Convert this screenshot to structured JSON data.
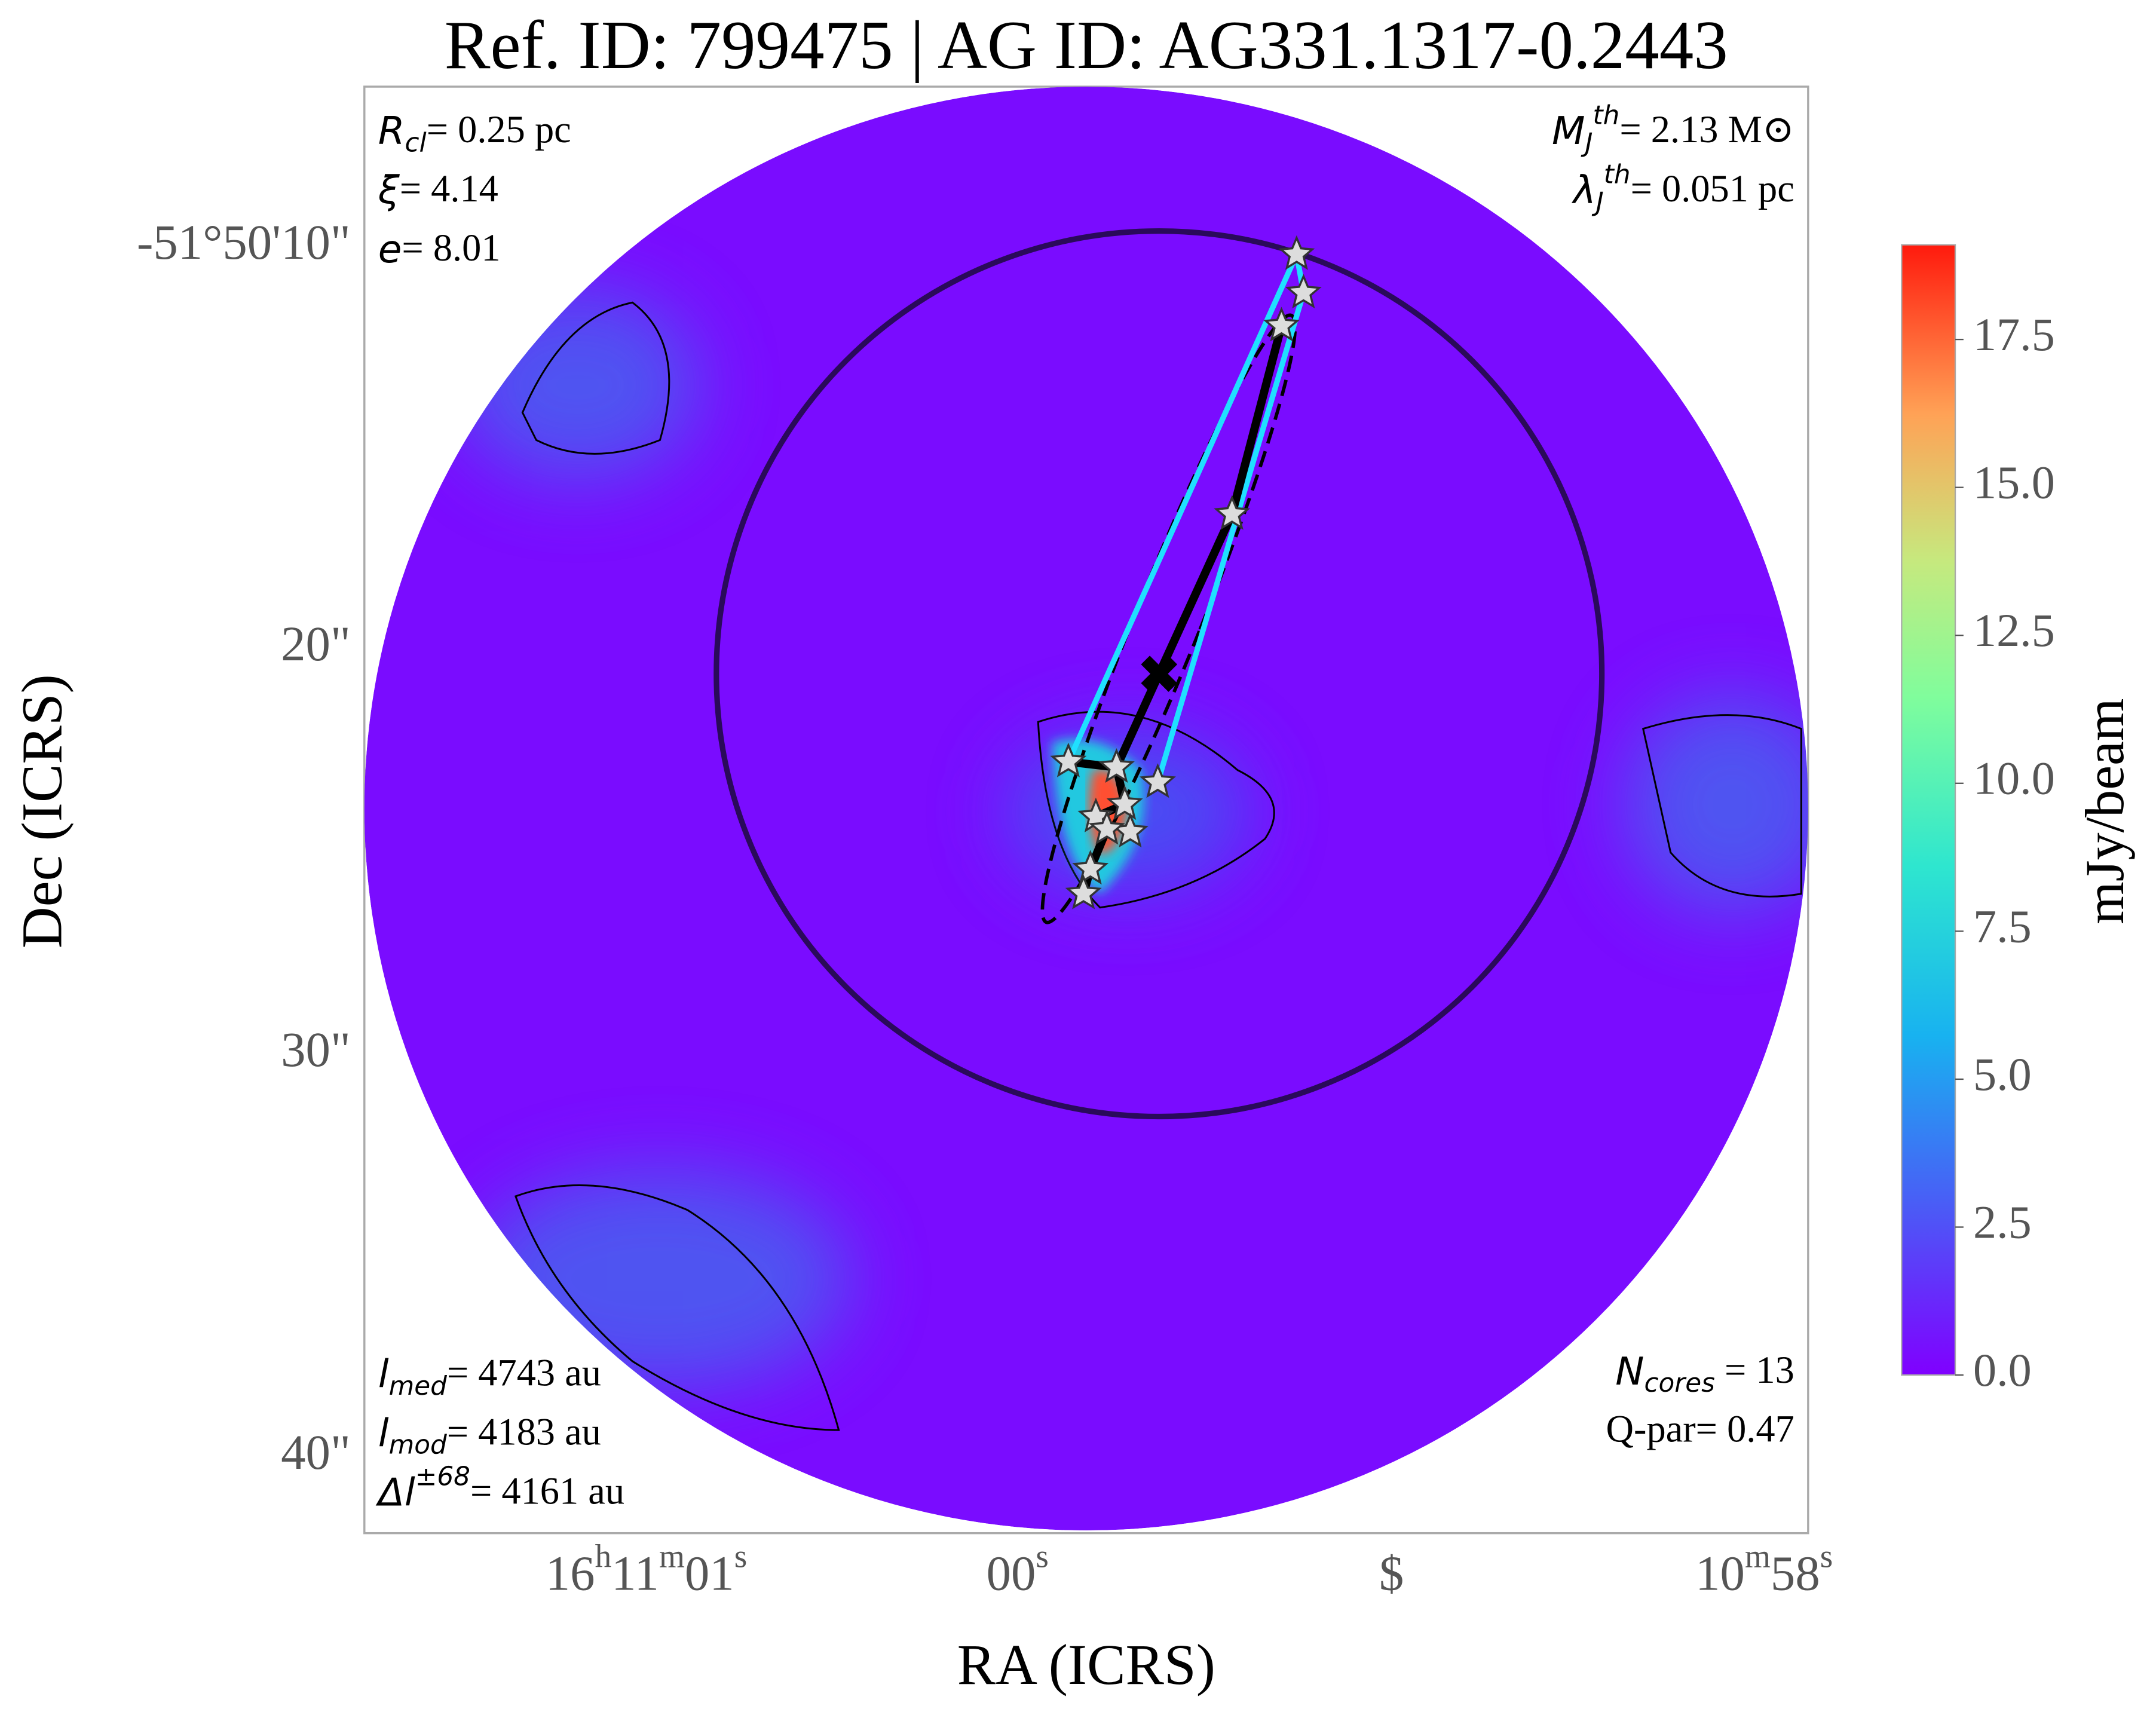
{
  "chart_data": {
    "type": "image",
    "title": "Ref. ID: 799475 | AG ID: AG331.1317-0.2443",
    "x_label": "RA (ICRS)",
    "y_label": "Dec (ICRS)",
    "x_tick_labels": [
      [
        "16",
        "h",
        "11",
        "m",
        "01",
        "s"
      ],
      [
        "00",
        "s"
      ],
      [
        "$"
      ],
      [
        "10",
        "m",
        "58",
        "s"
      ]
    ],
    "y_tick_labels": [
      "-51°50'10\"",
      "20\"",
      "30\"",
      "40\""
    ],
    "colorbar": {
      "label": "mJy/beam",
      "lim": [
        0,
        19.1
      ],
      "ticks": [
        {
          "value": 0,
          "label": "0.0"
        },
        2.5,
        {
          "value": 5,
          "label": "5.0"
        },
        7.5,
        {
          "value": 10,
          "label": "10.0"
        },
        12.5,
        {
          "value": 15,
          "label": "15.0"
        },
        17.5
      ]
    },
    "annotations": [
      {
        "corner": "top-left",
        "lines": [
          {
            "symbol": "R",
            "sub": "cl",
            "text": "= 0.25 pc"
          },
          {
            "symbol": "ξ",
            "text": "= 4.14"
          },
          {
            "symbol": "e",
            "text": "= 8.01"
          }
        ]
      },
      {
        "corner": "top-right",
        "lines": [
          {
            "symbol": "M",
            "sub": "J",
            "sup": "th",
            "text": "= 2.13 M⊙"
          },
          {
            "symbol": "λ",
            "sub": "J",
            "sup": "th",
            "text": "= 0.051 pc"
          }
        ]
      },
      {
        "corner": "bottom-left",
        "lines": [
          {
            "symbol": "l",
            "sub": "med",
            "text": "= 4743 au"
          },
          {
            "symbol": "l",
            "sub": "mod",
            "text": "= 4183 au"
          },
          {
            "symbol": "Δl",
            "sup": "±68",
            "text": "= 4161 au"
          }
        ]
      },
      {
        "corner": "bottom-right",
        "lines": [
          {
            "symbol": "N",
            "sub": "cores",
            "text": " = 13"
          },
          {
            "text": "Q-par= 0.47"
          }
        ]
      }
    ]
  }
}
